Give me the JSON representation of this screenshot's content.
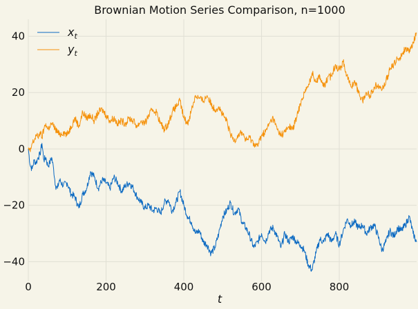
{
  "chart_data": {
    "type": "line",
    "title": "Brownian Motion Series Comparison, n=1000",
    "xlabel": "t",
    "ylabel": "",
    "xlim": [
      0,
      999
    ],
    "ylim": [
      -47,
      46
    ],
    "xticks": [
      0,
      200,
      400,
      600,
      800
    ],
    "yticks": [
      -40,
      -20,
      0,
      20,
      40
    ],
    "grid": true,
    "legend_position": "top-left",
    "series": [
      {
        "name": "x_t",
        "legend_main": "x",
        "legend_sub": "t",
        "color": "#0c6ac2",
        "points": [
          [
            0,
            0
          ],
          [
            5,
            -6
          ],
          [
            10,
            -7
          ],
          [
            15,
            -4
          ],
          [
            20,
            -5
          ],
          [
            25,
            -3
          ],
          [
            30,
            -2
          ],
          [
            35,
            2
          ],
          [
            40,
            -4
          ],
          [
            45,
            -3
          ],
          [
            50,
            -6
          ],
          [
            55,
            -5
          ],
          [
            60,
            -3
          ],
          [
            65,
            -7
          ],
          [
            70,
            -13
          ],
          [
            75,
            -14
          ],
          [
            80,
            -11
          ],
          [
            90,
            -13
          ],
          [
            100,
            -12
          ],
          [
            110,
            -16
          ],
          [
            120,
            -17
          ],
          [
            130,
            -21
          ],
          [
            140,
            -16
          ],
          [
            150,
            -14
          ],
          [
            160,
            -8
          ],
          [
            170,
            -10
          ],
          [
            180,
            -14
          ],
          [
            190,
            -11
          ],
          [
            200,
            -12
          ],
          [
            210,
            -14
          ],
          [
            220,
            -10
          ],
          [
            230,
            -12
          ],
          [
            240,
            -15
          ],
          [
            250,
            -13
          ],
          [
            260,
            -12
          ],
          [
            270,
            -14
          ],
          [
            280,
            -17
          ],
          [
            290,
            -19
          ],
          [
            300,
            -21
          ],
          [
            310,
            -20
          ],
          [
            320,
            -22
          ],
          [
            330,
            -21
          ],
          [
            340,
            -23
          ],
          [
            350,
            -19
          ],
          [
            360,
            -18
          ],
          [
            370,
            -22
          ],
          [
            380,
            -19
          ],
          [
            390,
            -15
          ],
          [
            400,
            -20
          ],
          [
            410,
            -24
          ],
          [
            420,
            -26
          ],
          [
            430,
            -30
          ],
          [
            440,
            -29
          ],
          [
            450,
            -33
          ],
          [
            460,
            -34
          ],
          [
            470,
            -37
          ],
          [
            480,
            -35
          ],
          [
            490,
            -30
          ],
          [
            500,
            -24
          ],
          [
            510,
            -22
          ],
          [
            520,
            -19
          ],
          [
            530,
            -23
          ],
          [
            540,
            -21
          ],
          [
            550,
            -26
          ],
          [
            560,
            -28
          ],
          [
            570,
            -31
          ],
          [
            580,
            -35
          ],
          [
            590,
            -33
          ],
          [
            600,
            -30
          ],
          [
            610,
            -33
          ],
          [
            620,
            -29
          ],
          [
            630,
            -28
          ],
          [
            640,
            -31
          ],
          [
            650,
            -35
          ],
          [
            660,
            -30
          ],
          [
            670,
            -33
          ],
          [
            680,
            -31
          ],
          [
            690,
            -33
          ],
          [
            700,
            -34
          ],
          [
            710,
            -36
          ],
          [
            720,
            -41
          ],
          [
            730,
            -43
          ],
          [
            740,
            -37
          ],
          [
            750,
            -32
          ],
          [
            760,
            -33
          ],
          [
            770,
            -30
          ],
          [
            780,
            -33
          ],
          [
            790,
            -30
          ],
          [
            800,
            -34
          ],
          [
            810,
            -29
          ],
          [
            820,
            -25
          ],
          [
            830,
            -27
          ],
          [
            840,
            -26
          ],
          [
            850,
            -28
          ],
          [
            860,
            -27
          ],
          [
            870,
            -30
          ],
          [
            880,
            -28
          ],
          [
            890,
            -27
          ],
          [
            900,
            -31
          ],
          [
            910,
            -36
          ],
          [
            920,
            -33
          ],
          [
            930,
            -29
          ],
          [
            940,
            -31
          ],
          [
            950,
            -28
          ],
          [
            960,
            -29
          ],
          [
            970,
            -27
          ],
          [
            980,
            -24
          ],
          [
            990,
            -30
          ],
          [
            999,
            -33
          ]
        ]
      },
      {
        "name": "y_t",
        "legend_main": "y",
        "legend_sub": "t",
        "color": "#f5910a",
        "points": [
          [
            0,
            0
          ],
          [
            5,
            -1
          ],
          [
            10,
            2
          ],
          [
            15,
            3
          ],
          [
            20,
            5
          ],
          [
            25,
            4
          ],
          [
            30,
            6
          ],
          [
            35,
            4
          ],
          [
            40,
            7
          ],
          [
            45,
            9
          ],
          [
            50,
            7
          ],
          [
            55,
            8
          ],
          [
            60,
            9
          ],
          [
            70,
            7
          ],
          [
            80,
            5
          ],
          [
            90,
            6
          ],
          [
            100,
            5
          ],
          [
            110,
            8
          ],
          [
            120,
            11
          ],
          [
            130,
            8
          ],
          [
            140,
            13
          ],
          [
            150,
            11
          ],
          [
            160,
            12
          ],
          [
            170,
            10
          ],
          [
            180,
            13
          ],
          [
            190,
            14
          ],
          [
            200,
            12
          ],
          [
            210,
            10
          ],
          [
            220,
            11
          ],
          [
            230,
            9
          ],
          [
            240,
            10
          ],
          [
            250,
            9
          ],
          [
            260,
            11
          ],
          [
            270,
            10
          ],
          [
            280,
            8
          ],
          [
            290,
            10
          ],
          [
            300,
            9
          ],
          [
            310,
            12
          ],
          [
            320,
            14
          ],
          [
            330,
            13
          ],
          [
            340,
            9
          ],
          [
            350,
            7
          ],
          [
            360,
            9
          ],
          [
            370,
            13
          ],
          [
            380,
            15
          ],
          [
            390,
            17
          ],
          [
            400,
            11
          ],
          [
            410,
            9
          ],
          [
            420,
            14
          ],
          [
            430,
            19
          ],
          [
            440,
            18
          ],
          [
            450,
            17
          ],
          [
            460,
            19
          ],
          [
            470,
            16
          ],
          [
            480,
            14
          ],
          [
            490,
            15
          ],
          [
            500,
            12
          ],
          [
            510,
            10
          ],
          [
            520,
            5
          ],
          [
            530,
            3
          ],
          [
            540,
            5
          ],
          [
            550,
            6
          ],
          [
            560,
            3
          ],
          [
            570,
            4
          ],
          [
            580,
            2
          ],
          [
            590,
            1
          ],
          [
            600,
            5
          ],
          [
            610,
            6
          ],
          [
            620,
            9
          ],
          [
            630,
            11
          ],
          [
            640,
            7
          ],
          [
            650,
            5
          ],
          [
            660,
            6
          ],
          [
            670,
            8
          ],
          [
            680,
            7
          ],
          [
            690,
            11
          ],
          [
            700,
            16
          ],
          [
            710,
            20
          ],
          [
            720,
            22
          ],
          [
            730,
            27
          ],
          [
            740,
            24
          ],
          [
            750,
            26
          ],
          [
            760,
            22
          ],
          [
            770,
            25
          ],
          [
            780,
            26
          ],
          [
            790,
            30
          ],
          [
            800,
            28
          ],
          [
            810,
            31
          ],
          [
            820,
            26
          ],
          [
            830,
            22
          ],
          [
            840,
            24
          ],
          [
            850,
            20
          ],
          [
            860,
            17
          ],
          [
            870,
            20
          ],
          [
            880,
            19
          ],
          [
            890,
            22
          ],
          [
            900,
            23
          ],
          [
            910,
            21
          ],
          [
            920,
            24
          ],
          [
            930,
            28
          ],
          [
            940,
            30
          ],
          [
            950,
            32
          ],
          [
            960,
            33
          ],
          [
            970,
            36
          ],
          [
            980,
            34
          ],
          [
            990,
            38
          ],
          [
            999,
            41
          ]
        ]
      }
    ]
  }
}
